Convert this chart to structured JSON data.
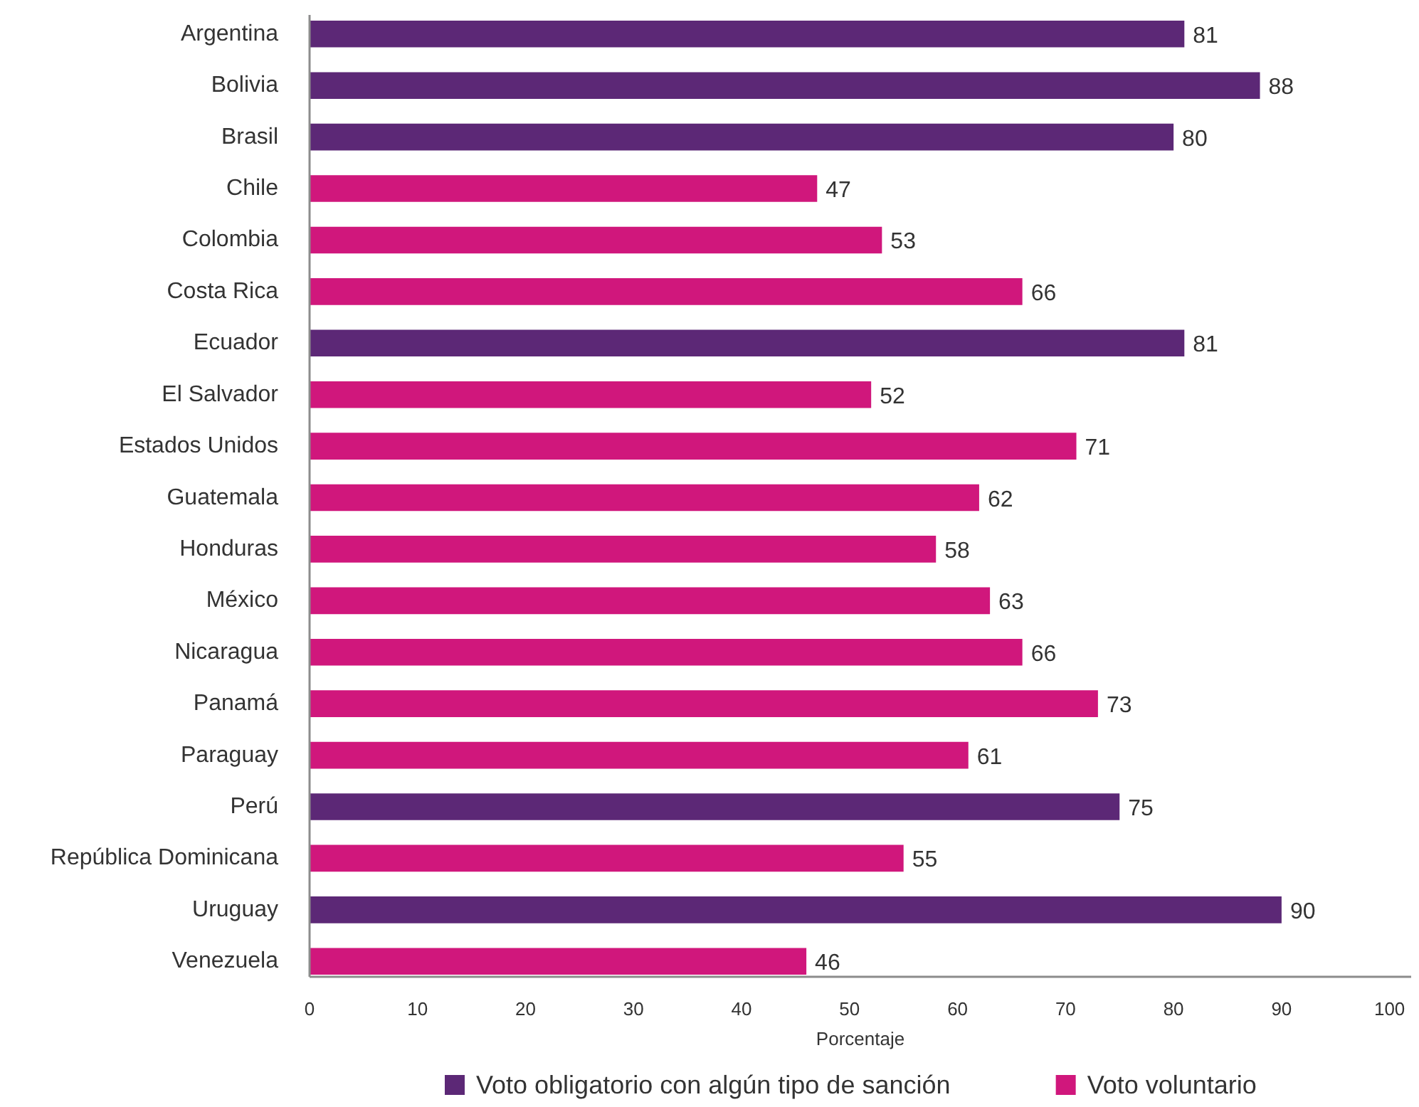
{
  "chart_data": {
    "type": "bar",
    "orientation": "horizontal",
    "stacked": true,
    "xlabel": "Porcentaje",
    "categories": [
      "Argentina",
      "Bolivia",
      "Brasil",
      "Chile",
      "Colombia",
      "Costa Rica",
      "Ecuador",
      "El Salvador",
      "Estados Unidos",
      "Guatemala",
      "Honduras",
      "México",
      "Nicaragua",
      "Panamá",
      "Paraguay",
      "Perú",
      "República Dominicana",
      "Uruguay",
      "Venezuela"
    ],
    "series": [
      {
        "name": "Voto obligatorio con algún tipo de sanción",
        "color": "#5c2876",
        "values": [
          81,
          88,
          80,
          null,
          null,
          null,
          81,
          null,
          null,
          null,
          null,
          null,
          null,
          null,
          null,
          75,
          null,
          90,
          null
        ]
      },
      {
        "name": "Voto voluntario",
        "color": "#d0177c",
        "values": [
          null,
          null,
          null,
          47,
          53,
          66,
          null,
          52,
          71,
          62,
          58,
          63,
          66,
          73,
          61,
          null,
          55,
          null,
          46
        ]
      }
    ],
    "xlim": [
      0,
      102
    ],
    "xticks": [
      0,
      10,
      20,
      30,
      40,
      50,
      60,
      70,
      80,
      90,
      100
    ],
    "data_labels": true,
    "legend": "bottom",
    "grid": false
  }
}
